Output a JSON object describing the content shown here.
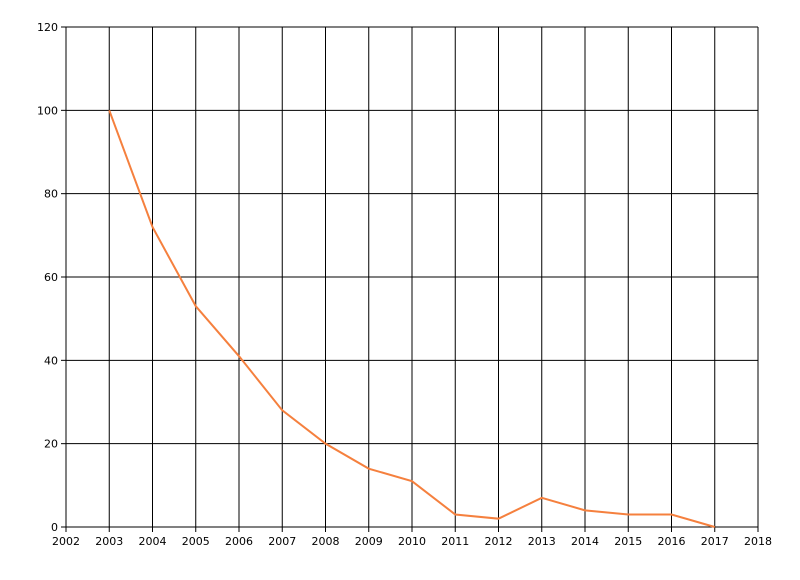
{
  "chart_data": {
    "type": "line",
    "x": [
      2003,
      2004,
      2005,
      2006,
      2007,
      2008,
      2009,
      2010,
      2011,
      2012,
      2013,
      2014,
      2015,
      2016,
      2017
    ],
    "series": [
      {
        "color": "#f5803e",
        "values": [
          100,
          72,
          53,
          41,
          28,
          20,
          14,
          11,
          3,
          2,
          7,
          4,
          3,
          3,
          0
        ]
      }
    ],
    "xlim": [
      2002,
      2018
    ],
    "xticks": [
      2002,
      2003,
      2004,
      2005,
      2006,
      2007,
      2008,
      2009,
      2010,
      2011,
      2012,
      2013,
      2014,
      2015,
      2016,
      2017,
      2018
    ],
    "ylim": [
      0,
      120
    ],
    "yticks": [
      0,
      20,
      40,
      60,
      80,
      100,
      120
    ],
    "grid": true
  }
}
